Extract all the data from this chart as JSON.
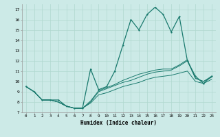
{
  "xlabel": "Humidex (Indice chaleur)",
  "bg_color": "#cceae7",
  "grid_color": "#b0d8d0",
  "line_color": "#1a7a6e",
  "xlim": [
    -0.5,
    23.5
  ],
  "ylim": [
    7,
    17.5
  ],
  "yticks": [
    7,
    8,
    9,
    10,
    11,
    12,
    13,
    14,
    15,
    16,
    17
  ],
  "xticks": [
    0,
    1,
    2,
    3,
    4,
    5,
    6,
    7,
    8,
    9,
    10,
    11,
    12,
    13,
    14,
    15,
    16,
    17,
    18,
    19,
    20,
    21,
    22,
    23
  ],
  "series": [
    [
      9.5,
      9.0,
      8.2,
      8.2,
      8.2,
      7.6,
      7.4,
      7.4,
      11.2,
      9.2,
      9.5,
      11.0,
      13.5,
      16.0,
      15.0,
      16.5,
      17.2,
      16.5,
      14.8,
      16.3,
      12.0,
      10.5,
      9.8,
      10.5
    ],
    [
      9.5,
      9.0,
      8.2,
      8.2,
      8.0,
      7.6,
      7.4,
      7.4,
      8.0,
      9.0,
      9.3,
      9.6,
      9.9,
      10.1,
      10.4,
      10.7,
      10.9,
      11.0,
      11.1,
      11.5,
      12.0,
      10.3,
      10.0,
      10.5
    ],
    [
      9.5,
      9.0,
      8.2,
      8.2,
      8.0,
      7.6,
      7.4,
      7.4,
      7.9,
      8.7,
      8.9,
      9.2,
      9.5,
      9.7,
      9.9,
      10.2,
      10.4,
      10.5,
      10.6,
      10.8,
      11.0,
      10.0,
      9.8,
      10.2
    ],
    [
      9.5,
      9.0,
      8.2,
      8.2,
      8.0,
      7.6,
      7.4,
      7.4,
      8.1,
      9.1,
      9.4,
      9.7,
      10.1,
      10.4,
      10.7,
      10.9,
      11.1,
      11.2,
      11.2,
      11.6,
      12.1,
      10.3,
      10.0,
      10.4
    ]
  ]
}
